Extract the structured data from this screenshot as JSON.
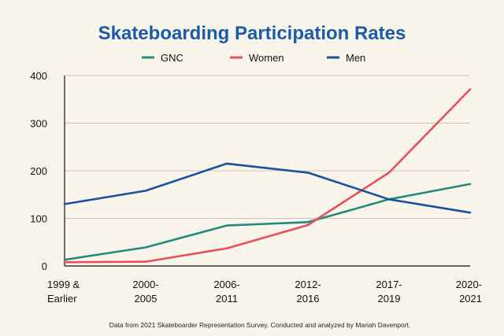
{
  "chart_data": {
    "type": "line",
    "title": "Skateboarding Participation Rates",
    "categories": [
      [
        "1999 &",
        "Earlier"
      ],
      [
        "2000-",
        "2005"
      ],
      [
        "2006-",
        "2011"
      ],
      [
        "2012-",
        "2016"
      ],
      [
        "2017-",
        "2019"
      ],
      [
        "2020-",
        "2021"
      ]
    ],
    "ylim": [
      0,
      400
    ],
    "yticks": [
      "0",
      "100",
      "200",
      "300",
      "400"
    ],
    "grid": true,
    "legend": "top",
    "series": [
      {
        "name": "GNC",
        "color": "#248a7a",
        "values": [
          13,
          39,
          85,
          92,
          140,
          172
        ]
      },
      {
        "name": "Women",
        "color": "#e8505b",
        "values": [
          8,
          9,
          37,
          86,
          196,
          371
        ]
      },
      {
        "name": "Men",
        "color": "#1c4f9c",
        "values": [
          130,
          158,
          215,
          196,
          140,
          112
        ]
      }
    ],
    "note": "Data from 2021 Skateboarder Representation Survey. Conducted and analyzed by Mariah Davenport."
  }
}
